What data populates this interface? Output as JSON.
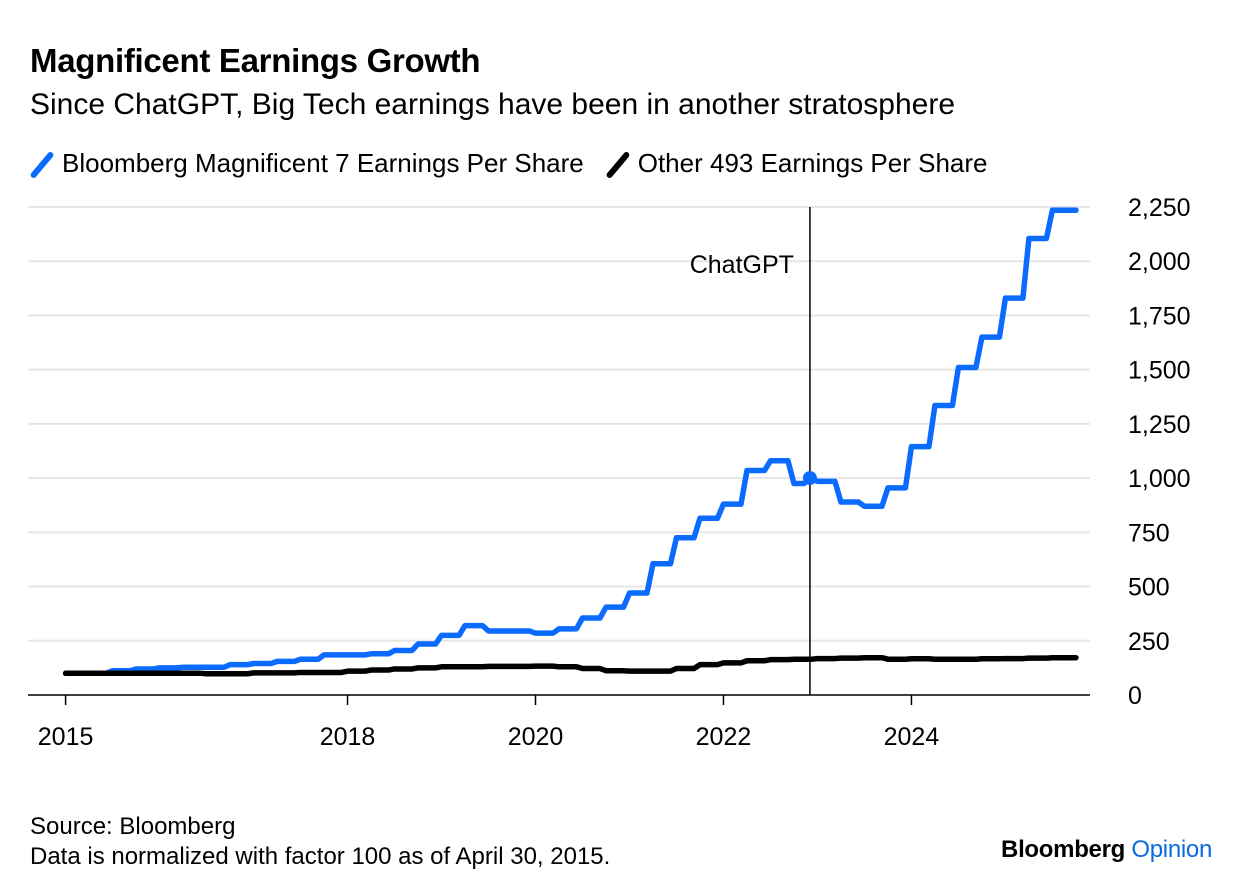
{
  "header": {
    "title": "Magnificent Earnings Growth",
    "subtitle": "Since ChatGPT, Big Tech earnings have been in another stratosphere"
  },
  "legend": [
    {
      "label": "Bloomberg Magnificent 7 Earnings Per Share",
      "color": "#0b6bff"
    },
    {
      "label": "Other 493 Earnings Per Share",
      "color": "#000000"
    }
  ],
  "footer": {
    "source": "Source: Bloomberg",
    "note": "Data is normalized with factor 100 as of April 30, 2015.",
    "brand_name": "Bloomberg",
    "brand_suffix": "Opinion"
  },
  "chart_data": {
    "type": "line",
    "xlim": [
      2014.6,
      2025.9
    ],
    "ylim": [
      0,
      2250
    ],
    "x_ticks": [
      2015,
      2018,
      2020,
      2022,
      2024
    ],
    "y_ticks": [
      0,
      250,
      500,
      750,
      1000,
      1250,
      1500,
      1750,
      2000,
      2250
    ],
    "y_tick_labels": [
      "0",
      "250",
      "500",
      "750",
      "1,000",
      "1,250",
      "1,500",
      "1,750",
      "2,000",
      "2,250"
    ],
    "grid": true,
    "legend_position": "top-left",
    "annotation": {
      "label": "ChatGPT",
      "x": 2022.92,
      "marker_value": 1000
    },
    "series": [
      {
        "name": "Bloomberg Magnificent 7 Earnings Per Share",
        "color": "#0b6bff",
        "step": true,
        "points": [
          [
            2015.0,
            100
          ],
          [
            2015.3,
            100
          ],
          [
            2015.5,
            112
          ],
          [
            2015.75,
            120
          ],
          [
            2016.0,
            125
          ],
          [
            2016.25,
            128
          ],
          [
            2016.5,
            128
          ],
          [
            2016.75,
            140
          ],
          [
            2017.0,
            145
          ],
          [
            2017.25,
            155
          ],
          [
            2017.5,
            165
          ],
          [
            2017.75,
            185
          ],
          [
            2018.0,
            185
          ],
          [
            2018.25,
            190
          ],
          [
            2018.5,
            205
          ],
          [
            2018.75,
            235
          ],
          [
            2019.0,
            275
          ],
          [
            2019.25,
            320
          ],
          [
            2019.5,
            295
          ],
          [
            2019.75,
            295
          ],
          [
            2020.0,
            285
          ],
          [
            2020.25,
            305
          ],
          [
            2020.5,
            355
          ],
          [
            2020.75,
            405
          ],
          [
            2021.0,
            470
          ],
          [
            2021.25,
            605
          ],
          [
            2021.5,
            725
          ],
          [
            2021.75,
            815
          ],
          [
            2022.0,
            880
          ],
          [
            2022.25,
            1035
          ],
          [
            2022.5,
            1080
          ],
          [
            2022.75,
            975
          ],
          [
            2022.92,
            1000
          ],
          [
            2023.0,
            985
          ],
          [
            2023.25,
            890
          ],
          [
            2023.5,
            870
          ],
          [
            2023.75,
            955
          ],
          [
            2024.0,
            1145
          ],
          [
            2024.25,
            1335
          ],
          [
            2024.5,
            1510
          ],
          [
            2024.75,
            1650
          ],
          [
            2025.0,
            1830
          ],
          [
            2025.25,
            2105
          ],
          [
            2025.5,
            2235
          ],
          [
            2025.75,
            2235
          ]
        ]
      },
      {
        "name": "Other 493 Earnings Per Share",
        "color": "#000000",
        "step": true,
        "points": [
          [
            2015.0,
            100
          ],
          [
            2015.5,
            100
          ],
          [
            2016.0,
            100
          ],
          [
            2016.5,
            98
          ],
          [
            2017.0,
            102
          ],
          [
            2017.5,
            104
          ],
          [
            2018.0,
            110
          ],
          [
            2018.25,
            115
          ],
          [
            2018.5,
            120
          ],
          [
            2018.75,
            125
          ],
          [
            2019.0,
            130
          ],
          [
            2019.5,
            132
          ],
          [
            2020.0,
            133
          ],
          [
            2020.25,
            130
          ],
          [
            2020.5,
            122
          ],
          [
            2020.75,
            112
          ],
          [
            2021.0,
            110
          ],
          [
            2021.25,
            110
          ],
          [
            2021.5,
            122
          ],
          [
            2021.75,
            140
          ],
          [
            2022.0,
            148
          ],
          [
            2022.25,
            158
          ],
          [
            2022.5,
            163
          ],
          [
            2022.75,
            165
          ],
          [
            2023.0,
            168
          ],
          [
            2023.25,
            170
          ],
          [
            2023.5,
            172
          ],
          [
            2023.75,
            165
          ],
          [
            2024.0,
            167
          ],
          [
            2024.25,
            165
          ],
          [
            2024.5,
            165
          ],
          [
            2024.75,
            167
          ],
          [
            2025.0,
            168
          ],
          [
            2025.25,
            170
          ],
          [
            2025.5,
            172
          ],
          [
            2025.75,
            172
          ]
        ]
      }
    ]
  }
}
